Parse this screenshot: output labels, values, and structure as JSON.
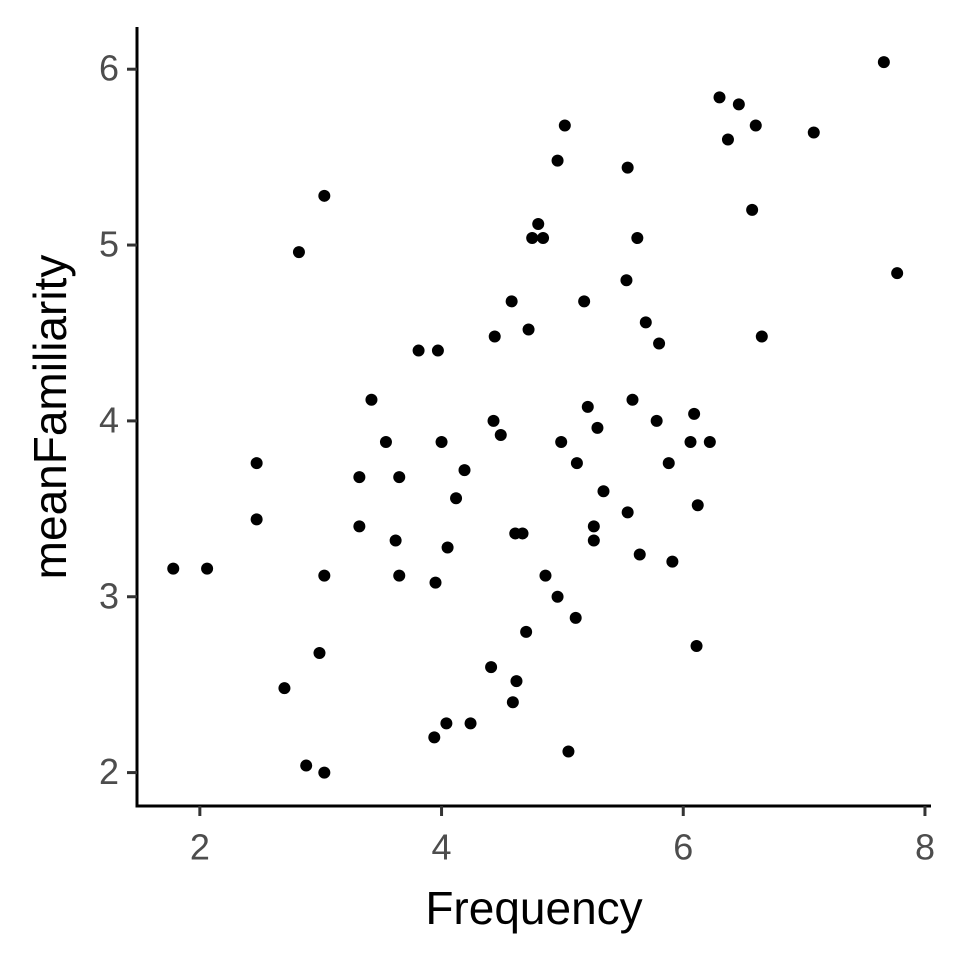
{
  "chart_data": {
    "type": "scatter",
    "x_label": "Frequency",
    "y_label": "meanFamiliarity",
    "x": [
      1.78,
      2.06,
      2.47,
      2.47,
      2.7,
      2.82,
      2.88,
      2.99,
      3.03,
      3.03,
      3.03,
      3.32,
      3.32,
      3.42,
      3.54,
      3.62,
      3.65,
      3.65,
      3.81,
      3.97,
      3.95,
      3.94,
      4.0,
      4.04,
      4.05,
      4.12,
      4.19,
      4.24,
      4.41,
      4.43,
      4.44,
      4.49,
      4.58,
      4.59,
      4.62,
      4.61,
      4.67,
      4.7,
      4.72,
      4.75,
      4.8,
      4.84,
      4.86,
      4.96,
      4.96,
      4.99,
      5.02,
      5.05,
      5.11,
      5.12,
      5.18,
      5.21,
      5.26,
      5.26,
      5.29,
      5.34,
      5.53,
      5.54,
      5.54,
      5.58,
      5.62,
      5.64,
      5.69,
      5.78,
      5.8,
      5.88,
      5.91,
      6.06,
      6.09,
      6.11,
      6.12,
      6.22,
      6.3,
      6.37,
      6.46,
      6.57,
      6.6,
      6.65,
      7.08,
      7.66,
      7.77
    ],
    "values": [
      3.16,
      3.16,
      3.76,
      3.44,
      2.48,
      4.96,
      2.04,
      2.68,
      5.28,
      3.12,
      2.0,
      3.68,
      3.4,
      4.12,
      3.88,
      3.32,
      3.68,
      3.12,
      4.4,
      4.4,
      3.08,
      2.2,
      3.88,
      2.28,
      3.28,
      3.56,
      3.72,
      2.28,
      2.6,
      4.0,
      4.48,
      3.92,
      4.68,
      2.4,
      2.52,
      3.36,
      3.36,
      2.8,
      4.52,
      5.04,
      5.12,
      5.04,
      3.12,
      3.0,
      5.48,
      3.88,
      5.68,
      2.12,
      2.88,
      3.76,
      4.68,
      4.08,
      3.32,
      3.4,
      3.96,
      3.6,
      4.8,
      5.44,
      3.48,
      4.12,
      5.04,
      3.24,
      4.56,
      4.0,
      4.44,
      3.76,
      3.2,
      3.88,
      4.04,
      2.72,
      3.52,
      3.88,
      5.84,
      5.6,
      5.8,
      5.2,
      5.68,
      4.48,
      5.64,
      6.04,
      4.84
    ],
    "color": "#000000",
    "xlim": [
      1.48,
      8.05
    ],
    "xticks": [
      2,
      4,
      6,
      8
    ],
    "ylim": [
      1.81,
      6.24
    ],
    "yticks": [
      2,
      3,
      4,
      5,
      6
    ],
    "grid": false
  }
}
